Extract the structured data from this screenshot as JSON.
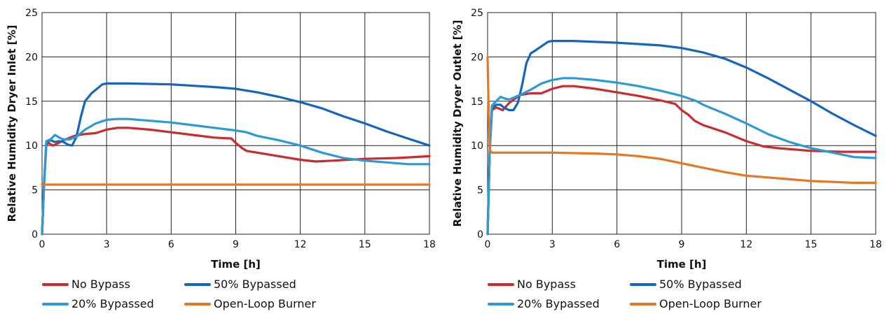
{
  "colors": {
    "no_bypass": "#cc2a2f",
    "bypassed_50": "#1565c0",
    "bypassed_20": "#2b9ad6",
    "open_loop": "#e87722",
    "grid": "#222222"
  },
  "chart_data": [
    {
      "type": "line",
      "ylabel": "Relative Humidity Dryer Inlet [%]",
      "xlabel": "Time [h]",
      "xlim": [
        0,
        18
      ],
      "ylim": [
        0,
        25
      ],
      "xticks": [
        0,
        3,
        6,
        9,
        12,
        15,
        18
      ],
      "yticks": [
        0,
        5,
        10,
        15,
        20,
        25
      ],
      "grid": true,
      "legend_position": "bottom",
      "series": [
        {
          "name": "No Bypass",
          "color": "#cc2a2f",
          "x": [
            0,
            0.1,
            0.2,
            0.3,
            0.5,
            0.7,
            1.0,
            1.5,
            2.0,
            2.5,
            3.0,
            3.5,
            4.0,
            5.0,
            6.0,
            7.0,
            8.0,
            8.8,
            9.0,
            9.3,
            9.5,
            10.0,
            11.0,
            12.0,
            12.7,
            13.5,
            15.0,
            16.5,
            18.0
          ],
          "y": [
            0,
            6.0,
            10.0,
            10.3,
            10.0,
            10.2,
            10.6,
            11.1,
            11.3,
            11.4,
            11.8,
            12.0,
            12.0,
            11.8,
            11.5,
            11.2,
            10.9,
            10.8,
            10.3,
            9.7,
            9.4,
            9.2,
            8.8,
            8.4,
            8.2,
            8.3,
            8.5,
            8.6,
            8.8
          ]
        },
        {
          "name": "50% Bypassed",
          "color": "#1565c0",
          "x": [
            0,
            0.1,
            0.2,
            0.4,
            0.6,
            0.8,
            1.0,
            1.2,
            1.4,
            1.6,
            1.8,
            2.0,
            2.3,
            2.6,
            2.8,
            3.0,
            4.0,
            6.0,
            8.0,
            9.0,
            10.0,
            11.0,
            12.0,
            13.0,
            14.0,
            15.0,
            16.0,
            17.0,
            18.0
          ],
          "y": [
            0,
            6.0,
            10.4,
            10.6,
            10.4,
            10.5,
            10.4,
            10.1,
            10.0,
            11.0,
            13.2,
            15.0,
            15.9,
            16.5,
            16.9,
            17.0,
            17.0,
            16.9,
            16.6,
            16.4,
            16.0,
            15.5,
            14.9,
            14.2,
            13.3,
            12.5,
            11.6,
            10.8,
            10.0
          ]
        },
        {
          "name": "20% Bypassed",
          "color": "#2b9ad6",
          "x": [
            0,
            0.1,
            0.2,
            0.4,
            0.6,
            0.8,
            1.0,
            1.3,
            1.6,
            2.0,
            2.5,
            3.0,
            3.5,
            4.0,
            5.0,
            6.0,
            7.0,
            8.0,
            9.0,
            9.5,
            10.0,
            11.0,
            12.0,
            13.0,
            14.0,
            15.0,
            16.0,
            17.0,
            18.0
          ],
          "y": [
            0,
            6.0,
            10.5,
            10.7,
            11.2,
            10.9,
            10.7,
            10.7,
            11.0,
            11.8,
            12.5,
            12.9,
            13.0,
            13.0,
            12.8,
            12.6,
            12.3,
            12.0,
            11.7,
            11.5,
            11.1,
            10.6,
            10.0,
            9.2,
            8.6,
            8.3,
            8.1,
            7.9,
            7.9
          ]
        },
        {
          "name": "Open-Loop Burner",
          "color": "#e87722",
          "x": [
            0,
            18
          ],
          "y": [
            5.6,
            5.6
          ]
        }
      ]
    },
    {
      "type": "line",
      "ylabel": "Relative Humidity Dryer Outlet [%]",
      "xlabel": "Time [h]",
      "xlim": [
        0,
        18
      ],
      "ylim": [
        0,
        25
      ],
      "xticks": [
        0,
        3,
        6,
        9,
        12,
        15,
        18
      ],
      "yticks": [
        0,
        5,
        10,
        15,
        20,
        25
      ],
      "grid": true,
      "legend_position": "bottom",
      "series": [
        {
          "name": "No Bypass",
          "color": "#cc2a2f",
          "x": [
            0,
            0.1,
            0.2,
            0.4,
            0.7,
            1.0,
            1.5,
            2.0,
            2.5,
            3.0,
            3.5,
            4.0,
            5.0,
            6.0,
            7.0,
            8.0,
            8.7,
            9.0,
            9.3,
            9.6,
            10.0,
            11.0,
            12.0,
            12.8,
            13.5,
            15.0,
            16.5,
            18.0
          ],
          "y": [
            0,
            9.5,
            14.0,
            14.3,
            14.0,
            14.8,
            15.7,
            15.9,
            15.9,
            16.4,
            16.7,
            16.7,
            16.4,
            16.0,
            15.6,
            15.1,
            14.7,
            14.0,
            13.5,
            12.8,
            12.3,
            11.5,
            10.5,
            9.9,
            9.7,
            9.4,
            9.3,
            9.3
          ]
        },
        {
          "name": "50% Bypassed",
          "color": "#1565c0",
          "x": [
            0,
            0.1,
            0.2,
            0.4,
            0.6,
            0.8,
            1.0,
            1.2,
            1.4,
            1.6,
            1.8,
            2.0,
            2.2,
            2.5,
            2.8,
            3.0,
            4.0,
            6.0,
            8.0,
            9.0,
            10.0,
            11.0,
            12.0,
            13.0,
            14.0,
            15.0,
            16.0,
            17.0,
            18.0
          ],
          "y": [
            0,
            9.5,
            14.2,
            14.6,
            14.6,
            14.2,
            14.0,
            14.0,
            14.8,
            16.8,
            19.3,
            20.4,
            20.7,
            21.2,
            21.7,
            21.8,
            21.8,
            21.6,
            21.3,
            21.0,
            20.5,
            19.8,
            18.8,
            17.6,
            16.3,
            15.0,
            13.6,
            12.3,
            11.1
          ]
        },
        {
          "name": "20% Bypassed",
          "color": "#2b9ad6",
          "x": [
            0,
            0.1,
            0.2,
            0.4,
            0.6,
            0.8,
            1.0,
            1.5,
            2.0,
            2.5,
            3.0,
            3.5,
            4.0,
            5.0,
            6.0,
            7.0,
            8.0,
            9.0,
            9.7,
            10.0,
            11.0,
            12.0,
            13.0,
            14.0,
            15.0,
            16.0,
            17.0,
            18.0
          ],
          "y": [
            0,
            9.5,
            14.5,
            15.0,
            15.5,
            15.3,
            15.2,
            15.7,
            16.3,
            17.0,
            17.4,
            17.6,
            17.6,
            17.4,
            17.1,
            16.7,
            16.2,
            15.6,
            15.0,
            14.6,
            13.6,
            12.5,
            11.3,
            10.4,
            9.7,
            9.2,
            8.7,
            8.6
          ]
        },
        {
          "name": "Open-Loop Burner",
          "color": "#e87722",
          "x": [
            0,
            0.05,
            0.1,
            0.2,
            1.0,
            3.0,
            5.0,
            6.0,
            7.0,
            8.0,
            9.0,
            10.0,
            11.0,
            12.0,
            13.0,
            14.0,
            15.0,
            16.0,
            17.0,
            18.0
          ],
          "y": [
            20.0,
            14.0,
            9.5,
            9.2,
            9.2,
            9.2,
            9.1,
            9.0,
            8.8,
            8.5,
            8.0,
            7.5,
            7.0,
            6.6,
            6.4,
            6.2,
            6.0,
            5.9,
            5.8,
            5.8
          ]
        }
      ]
    }
  ]
}
